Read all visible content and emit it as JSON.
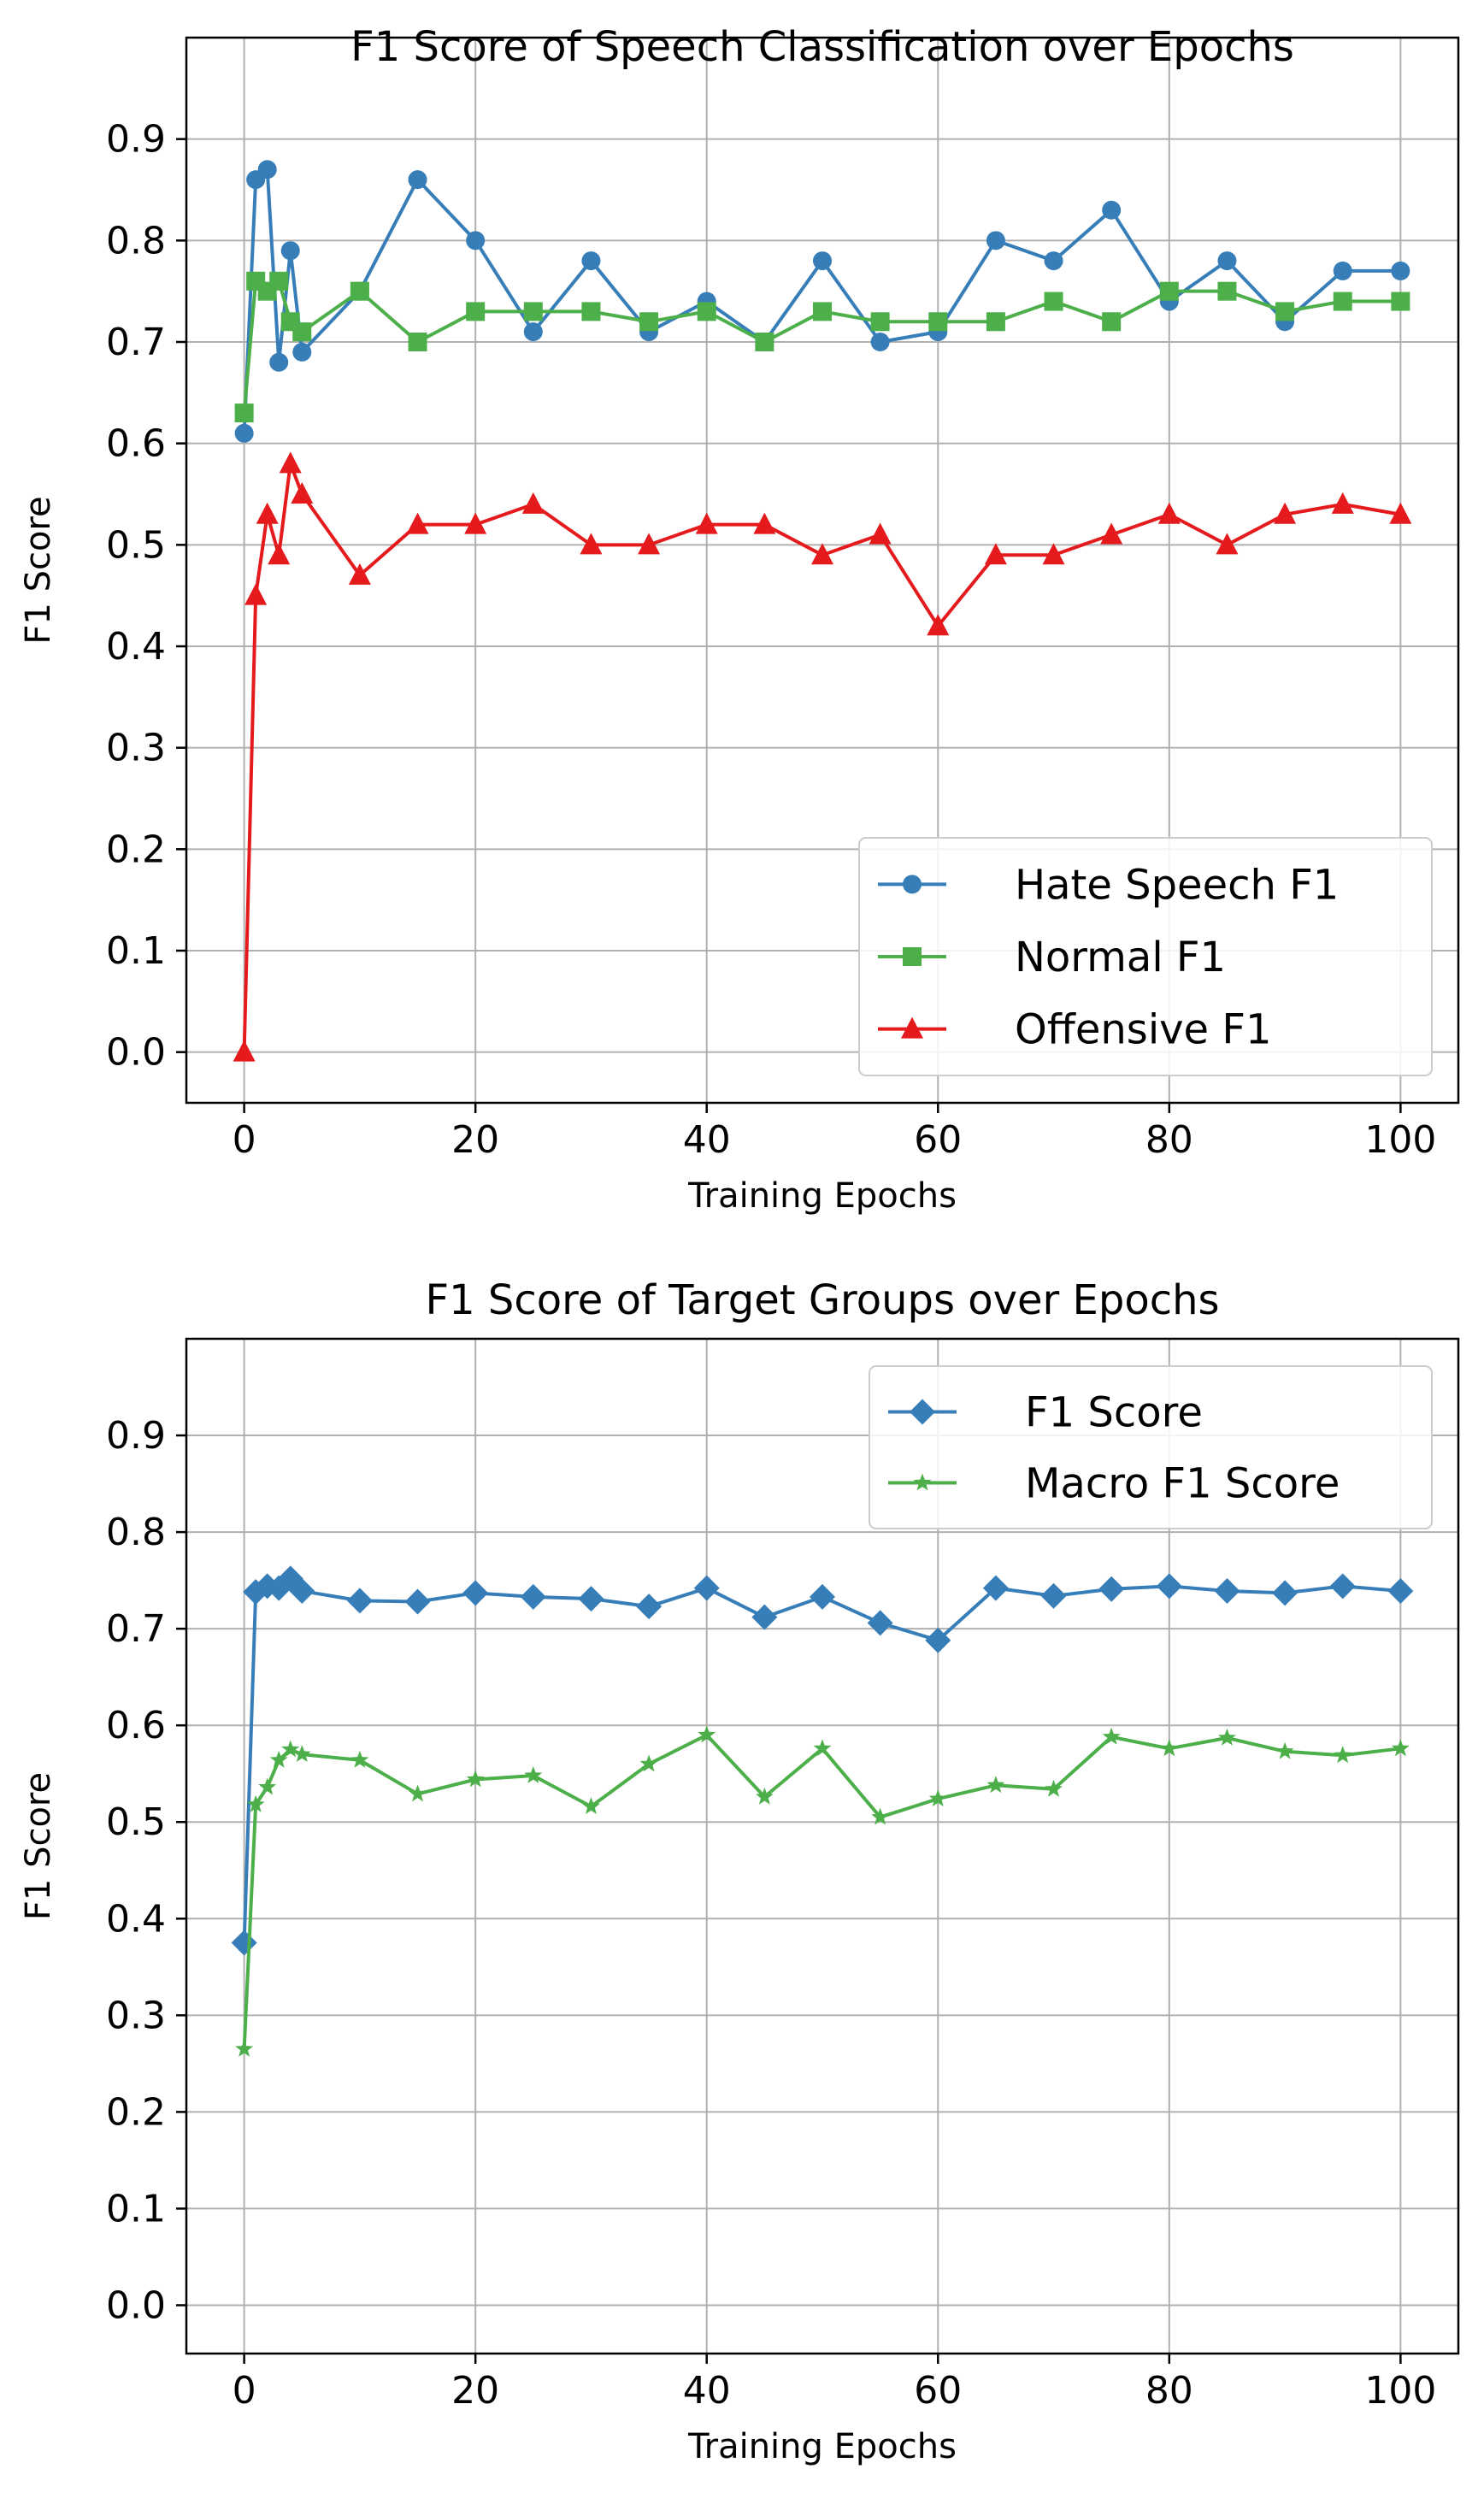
{
  "chart_data": [
    {
      "type": "line",
      "title": "F1 Score of Speech Classification over Epochs",
      "xlabel": "Training Epochs",
      "ylabel": "F1 Score",
      "xlim": [
        -5,
        105
      ],
      "ylim": [
        -0.05,
        1.0
      ],
      "xticks": [
        0,
        20,
        40,
        60,
        80,
        100
      ],
      "yticks": [
        0.0,
        0.1,
        0.2,
        0.3,
        0.4,
        0.5,
        0.6,
        0.7,
        0.8,
        0.9
      ],
      "grid": true,
      "legend_position": "bottom-right",
      "x": [
        0,
        1,
        2,
        3,
        4,
        5,
        10,
        15,
        20,
        25,
        30,
        35,
        40,
        45,
        50,
        55,
        60,
        65,
        70,
        75,
        80,
        85,
        90,
        95,
        100
      ],
      "series": [
        {
          "name": "Hate Speech F1",
          "color": "#377eb8",
          "marker": "circle",
          "values": [
            0.61,
            0.86,
            0.87,
            0.68,
            0.79,
            0.69,
            0.75,
            0.86,
            0.8,
            0.71,
            0.78,
            0.71,
            0.74,
            0.7,
            0.78,
            0.7,
            0.71,
            0.8,
            0.78,
            0.83,
            0.74,
            0.78,
            0.72,
            0.77,
            0.77
          ]
        },
        {
          "name": "Normal F1",
          "color": "#4daf4a",
          "marker": "square",
          "values": [
            0.63,
            0.76,
            0.75,
            0.76,
            0.72,
            0.71,
            0.75,
            0.7,
            0.73,
            0.73,
            0.73,
            0.72,
            0.73,
            0.7,
            0.73,
            0.72,
            0.72,
            0.72,
            0.74,
            0.72,
            0.75,
            0.75,
            0.73,
            0.74,
            0.74
          ]
        },
        {
          "name": "Offensive F1",
          "color": "#e41a1c",
          "marker": "triangle",
          "values": [
            0.0,
            0.45,
            0.53,
            0.49,
            0.58,
            0.55,
            0.47,
            0.52,
            0.52,
            0.54,
            0.5,
            0.5,
            0.52,
            0.52,
            0.49,
            0.51,
            0.42,
            0.49,
            0.49,
            0.51,
            0.53,
            0.5,
            0.53,
            0.54,
            0.53
          ]
        }
      ]
    },
    {
      "type": "line",
      "title": "F1 Score of Target Groups over Epochs",
      "xlabel": "Training Epochs",
      "ylabel": "F1 Score",
      "xlim": [
        -5,
        105
      ],
      "ylim": [
        -0.05,
        1.0
      ],
      "xticks": [
        0,
        20,
        40,
        60,
        80,
        100
      ],
      "yticks": [
        0.0,
        0.1,
        0.2,
        0.3,
        0.4,
        0.5,
        0.6,
        0.7,
        0.8,
        0.9
      ],
      "grid": true,
      "legend_position": "top-right",
      "x": [
        0,
        1,
        2,
        3,
        4,
        5,
        10,
        15,
        20,
        25,
        30,
        35,
        40,
        45,
        50,
        55,
        60,
        65,
        70,
        75,
        80,
        85,
        90,
        95,
        100
      ],
      "series": [
        {
          "name": "F1 Score",
          "color": "#377eb8",
          "marker": "diamond",
          "values": [
            0.375,
            0.738,
            0.744,
            0.742,
            0.752,
            0.739,
            0.729,
            0.728,
            0.737,
            0.733,
            0.731,
            0.723,
            0.742,
            0.712,
            0.733,
            0.706,
            0.688,
            0.742,
            0.734,
            0.741,
            0.744,
            0.739,
            0.737,
            0.744,
            0.739
          ]
        },
        {
          "name": "Macro F1 Score",
          "color": "#4daf4a",
          "marker": "star",
          "values": [
            0.265,
            0.518,
            0.536,
            0.564,
            0.575,
            0.57,
            0.564,
            0.529,
            0.544,
            0.548,
            0.516,
            0.56,
            0.59,
            0.526,
            0.576,
            0.505,
            0.524,
            0.538,
            0.534,
            0.588,
            0.576,
            0.587,
            0.573,
            0.569,
            0.576
          ]
        }
      ]
    }
  ]
}
